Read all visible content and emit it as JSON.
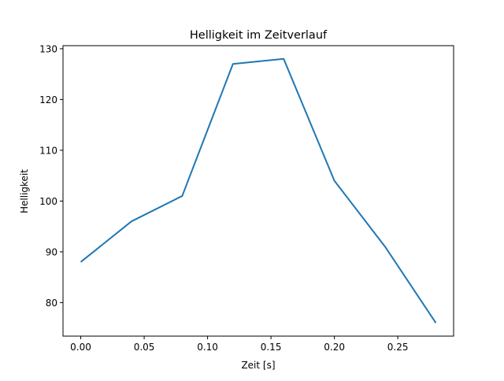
{
  "chart_data": {
    "type": "line",
    "title": "Helligkeit im Zeitverlauf",
    "xlabel": "Zeit [s]",
    "ylabel": "Helligkeit",
    "x": [
      0.0,
      0.04,
      0.08,
      0.12,
      0.16,
      0.2,
      0.24,
      0.28
    ],
    "series": [
      {
        "name": "Helligkeit",
        "color": "#1f77b4",
        "values": [
          88,
          96,
          101,
          127,
          128,
          104,
          91,
          76
        ]
      }
    ],
    "xlim": [
      -0.014,
      0.294
    ],
    "ylim": [
      73.4,
      130.6
    ],
    "xticks": [
      0.0,
      0.05,
      0.1,
      0.15,
      0.2,
      0.25
    ],
    "xtick_labels": [
      "0.00",
      "0.05",
      "0.10",
      "0.15",
      "0.20",
      "0.25"
    ],
    "yticks": [
      80,
      90,
      100,
      110,
      120,
      130
    ],
    "ytick_labels": [
      "80",
      "90",
      "100",
      "110",
      "120",
      "130"
    ],
    "grid": false
  }
}
